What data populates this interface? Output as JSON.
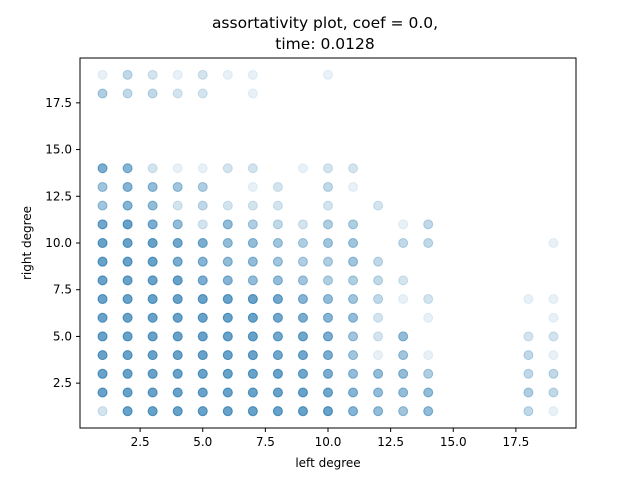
{
  "chart_data": {
    "type": "scatter",
    "title_line1": "assortativity plot, coef = 0.0,",
    "title_line2": "time: 0.0128",
    "xlabel": "left degree",
    "ylabel": "right degree",
    "xlim": [
      0.1,
      19.9
    ],
    "ylim": [
      0.1,
      19.9
    ],
    "xticks": [
      2.5,
      5.0,
      7.5,
      10.0,
      12.5,
      15.0,
      17.5
    ],
    "xtick_labels": [
      "2.5",
      "5.0",
      "7.5",
      "10.0",
      "12.5",
      "15.0",
      "17.5"
    ],
    "yticks": [
      2.5,
      5.0,
      7.5,
      10.0,
      12.5,
      15.0,
      17.5
    ],
    "ytick_labels": [
      "2.5",
      "5.0",
      "7.5",
      "10.0",
      "12.5",
      "15.0",
      "17.5"
    ],
    "grid": false,
    "color": "#1f77b4",
    "point_alpha": 0.1,
    "points": [
      [
        1,
        1,
        2
      ],
      [
        1,
        2,
        10
      ],
      [
        1,
        3,
        10
      ],
      [
        1,
        4,
        10
      ],
      [
        1,
        5,
        10
      ],
      [
        1,
        6,
        10
      ],
      [
        1,
        7,
        10
      ],
      [
        1,
        8,
        10
      ],
      [
        1,
        9,
        10
      ],
      [
        1,
        10,
        10
      ],
      [
        1,
        11,
        9
      ],
      [
        1,
        12,
        5
      ],
      [
        1,
        13,
        5
      ],
      [
        1,
        14,
        8
      ],
      [
        1,
        18,
        4
      ],
      [
        1,
        19,
        1
      ],
      [
        2,
        1,
        10
      ],
      [
        2,
        2,
        10
      ],
      [
        2,
        3,
        10
      ],
      [
        2,
        4,
        10
      ],
      [
        2,
        5,
        10
      ],
      [
        2,
        6,
        10
      ],
      [
        2,
        7,
        10
      ],
      [
        2,
        8,
        10
      ],
      [
        2,
        9,
        10
      ],
      [
        2,
        10,
        10
      ],
      [
        2,
        11,
        10
      ],
      [
        2,
        12,
        7
      ],
      [
        2,
        13,
        7
      ],
      [
        2,
        14,
        7
      ],
      [
        2,
        18,
        3
      ],
      [
        2,
        19,
        3
      ],
      [
        3,
        1,
        10
      ],
      [
        3,
        2,
        10
      ],
      [
        3,
        3,
        10
      ],
      [
        3,
        4,
        10
      ],
      [
        3,
        5,
        10
      ],
      [
        3,
        6,
        10
      ],
      [
        3,
        7,
        10
      ],
      [
        3,
        8,
        10
      ],
      [
        3,
        9,
        10
      ],
      [
        3,
        10,
        10
      ],
      [
        3,
        11,
        8
      ],
      [
        3,
        12,
        6
      ],
      [
        3,
        13,
        6
      ],
      [
        3,
        14,
        2
      ],
      [
        3,
        18,
        3
      ],
      [
        3,
        19,
        2
      ],
      [
        4,
        1,
        10
      ],
      [
        4,
        2,
        10
      ],
      [
        4,
        3,
        10
      ],
      [
        4,
        4,
        10
      ],
      [
        4,
        5,
        10
      ],
      [
        4,
        6,
        10
      ],
      [
        4,
        7,
        10
      ],
      [
        4,
        8,
        10
      ],
      [
        4,
        9,
        8
      ],
      [
        4,
        10,
        9
      ],
      [
        4,
        11,
        6
      ],
      [
        4,
        12,
        2
      ],
      [
        4,
        13,
        5
      ],
      [
        4,
        14,
        1
      ],
      [
        4,
        18,
        2
      ],
      [
        4,
        19,
        1
      ],
      [
        5,
        1,
        10
      ],
      [
        5,
        2,
        10
      ],
      [
        5,
        3,
        10
      ],
      [
        5,
        4,
        10
      ],
      [
        5,
        5,
        10
      ],
      [
        5,
        6,
        10
      ],
      [
        5,
        7,
        10
      ],
      [
        5,
        8,
        8
      ],
      [
        5,
        9,
        7
      ],
      [
        5,
        10,
        8
      ],
      [
        5,
        11,
        2
      ],
      [
        5,
        12,
        3
      ],
      [
        5,
        13,
        4
      ],
      [
        5,
        14,
        1
      ],
      [
        5,
        18,
        2
      ],
      [
        5,
        19,
        2
      ],
      [
        6,
        1,
        10
      ],
      [
        6,
        2,
        10
      ],
      [
        6,
        3,
        10
      ],
      [
        6,
        4,
        10
      ],
      [
        6,
        5,
        10
      ],
      [
        6,
        6,
        10
      ],
      [
        6,
        7,
        10
      ],
      [
        6,
        8,
        7
      ],
      [
        6,
        9,
        6
      ],
      [
        6,
        10,
        6
      ],
      [
        6,
        11,
        6
      ],
      [
        6,
        12,
        2
      ],
      [
        6,
        14,
        2
      ],
      [
        6,
        19,
        1
      ],
      [
        7,
        1,
        10
      ],
      [
        7,
        2,
        10
      ],
      [
        7,
        3,
        10
      ],
      [
        7,
        4,
        10
      ],
      [
        7,
        5,
        10
      ],
      [
        7,
        6,
        10
      ],
      [
        7,
        7,
        10
      ],
      [
        7,
        8,
        6
      ],
      [
        7,
        9,
        6
      ],
      [
        7,
        10,
        6
      ],
      [
        7,
        11,
        4
      ],
      [
        7,
        12,
        2
      ],
      [
        7,
        13,
        1
      ],
      [
        7,
        14,
        2
      ],
      [
        7,
        18,
        1
      ],
      [
        7,
        19,
        1
      ],
      [
        8,
        1,
        10
      ],
      [
        8,
        2,
        10
      ],
      [
        8,
        3,
        10
      ],
      [
        8,
        4,
        9
      ],
      [
        8,
        5,
        9
      ],
      [
        8,
        6,
        9
      ],
      [
        8,
        7,
        9
      ],
      [
        8,
        8,
        6
      ],
      [
        8,
        9,
        5
      ],
      [
        8,
        10,
        5
      ],
      [
        8,
        11,
        3
      ],
      [
        8,
        12,
        2
      ],
      [
        8,
        13,
        2
      ],
      [
        9,
        1,
        10
      ],
      [
        9,
        2,
        10
      ],
      [
        9,
        3,
        9
      ],
      [
        9,
        4,
        9
      ],
      [
        9,
        5,
        9
      ],
      [
        9,
        6,
        8
      ],
      [
        9,
        7,
        7
      ],
      [
        9,
        8,
        5
      ],
      [
        9,
        9,
        4
      ],
      [
        9,
        10,
        4
      ],
      [
        9,
        11,
        2
      ],
      [
        9,
        14,
        1
      ],
      [
        10,
        1,
        10
      ],
      [
        10,
        2,
        9
      ],
      [
        10,
        3,
        8
      ],
      [
        10,
        4,
        8
      ],
      [
        10,
        5,
        8
      ],
      [
        10,
        6,
        7
      ],
      [
        10,
        7,
        6
      ],
      [
        10,
        8,
        4
      ],
      [
        10,
        9,
        4
      ],
      [
        10,
        10,
        5
      ],
      [
        10,
        11,
        4
      ],
      [
        10,
        12,
        2
      ],
      [
        10,
        13,
        3
      ],
      [
        10,
        14,
        2
      ],
      [
        10,
        19,
        1
      ],
      [
        11,
        1,
        7
      ],
      [
        11,
        2,
        7
      ],
      [
        11,
        3,
        6
      ],
      [
        11,
        4,
        5
      ],
      [
        11,
        5,
        5
      ],
      [
        11,
        6,
        6
      ],
      [
        11,
        7,
        5
      ],
      [
        11,
        8,
        4
      ],
      [
        11,
        9,
        5
      ],
      [
        11,
        10,
        5
      ],
      [
        11,
        11,
        4
      ],
      [
        11,
        13,
        1
      ],
      [
        11,
        14,
        2
      ],
      [
        12,
        1,
        6
      ],
      [
        12,
        2,
        6
      ],
      [
        12,
        3,
        6
      ],
      [
        12,
        4,
        1
      ],
      [
        12,
        5,
        2
      ],
      [
        12,
        6,
        2
      ],
      [
        12,
        7,
        3
      ],
      [
        12,
        8,
        3
      ],
      [
        12,
        9,
        3
      ],
      [
        12,
        12,
        2
      ],
      [
        13,
        1,
        5
      ],
      [
        13,
        2,
        6
      ],
      [
        13,
        3,
        6
      ],
      [
        13,
        4,
        5
      ],
      [
        13,
        5,
        6
      ],
      [
        13,
        7,
        1
      ],
      [
        13,
        8,
        2
      ],
      [
        13,
        10,
        3
      ],
      [
        13,
        11,
        1
      ],
      [
        14,
        1,
        6
      ],
      [
        14,
        2,
        6
      ],
      [
        14,
        3,
        4
      ],
      [
        14,
        4,
        1
      ],
      [
        14,
        6,
        1
      ],
      [
        14,
        7,
        2
      ],
      [
        14,
        10,
        3
      ],
      [
        14,
        11,
        3
      ],
      [
        18,
        1,
        3
      ],
      [
        18,
        2,
        4
      ],
      [
        18,
        3,
        3
      ],
      [
        18,
        4,
        3
      ],
      [
        18,
        5,
        2
      ],
      [
        18,
        7,
        1
      ],
      [
        19,
        1,
        1
      ],
      [
        19,
        2,
        3
      ],
      [
        19,
        3,
        3
      ],
      [
        19,
        4,
        1
      ],
      [
        19,
        5,
        2
      ],
      [
        19,
        6,
        1
      ],
      [
        19,
        7,
        1
      ],
      [
        19,
        10,
        1
      ]
    ]
  }
}
